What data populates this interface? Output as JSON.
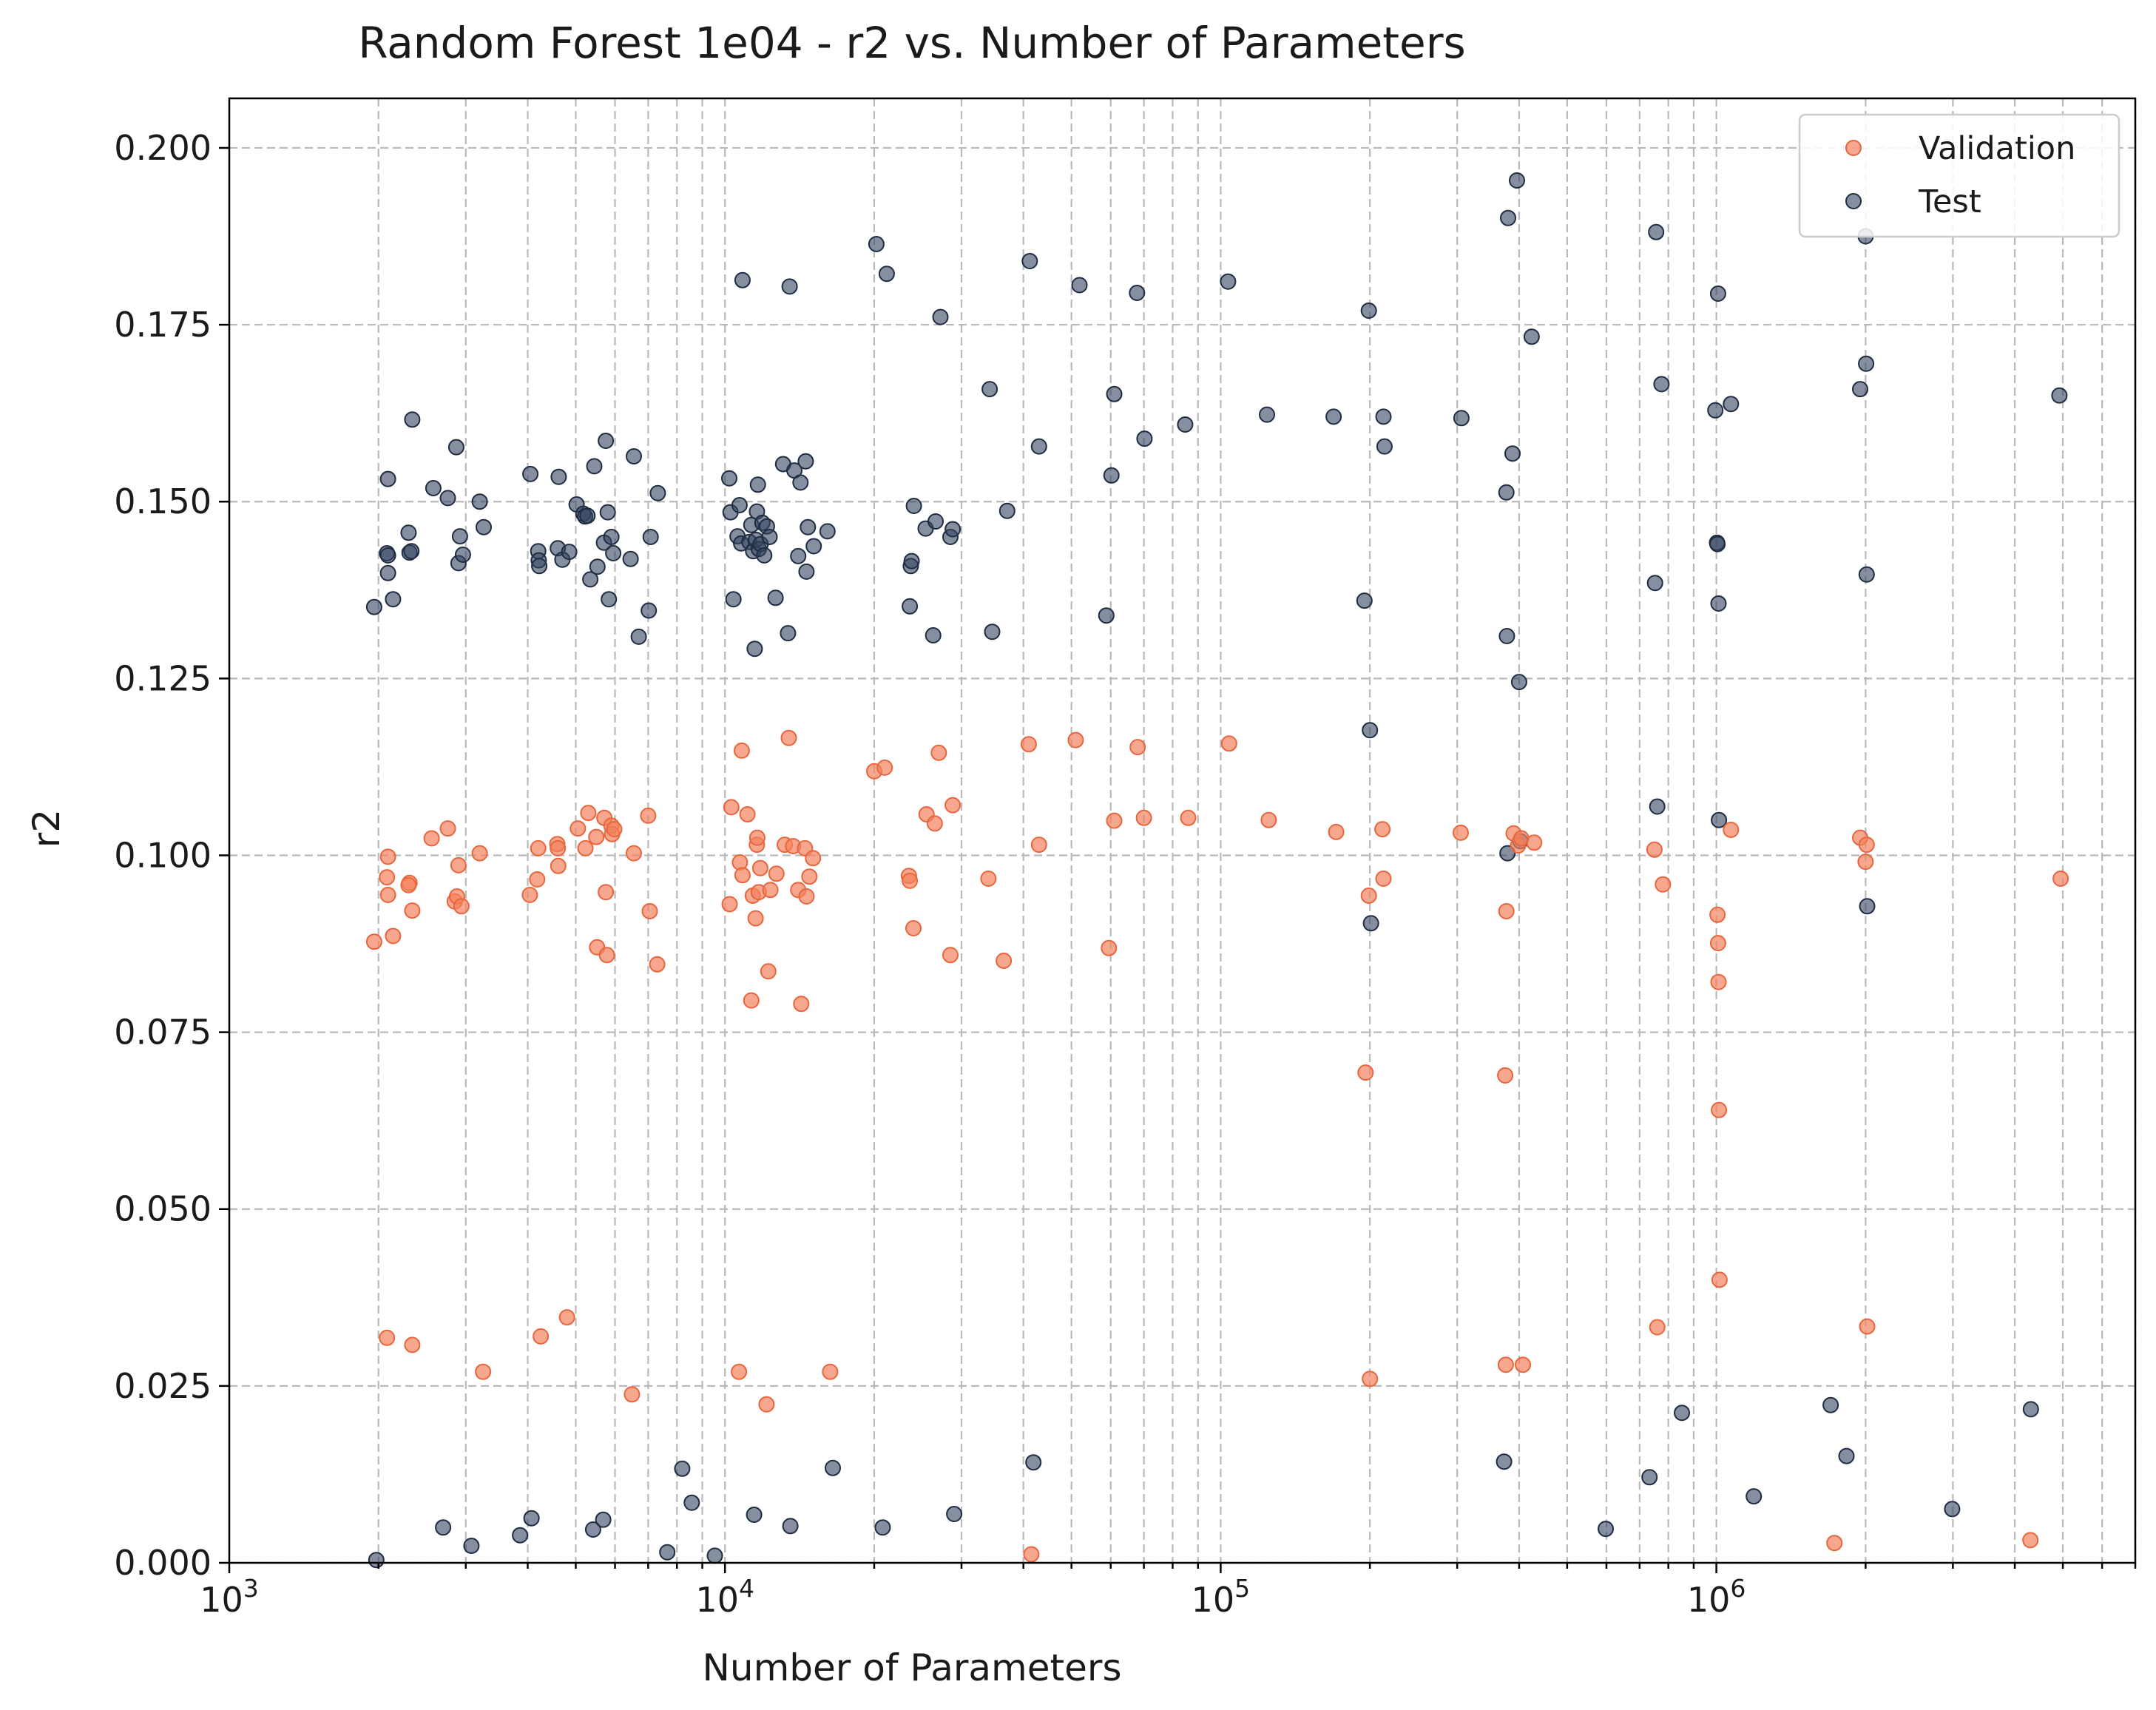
{
  "chart_data": {
    "type": "scatter",
    "title": "Random Forest 1e04 - r2 vs. Number of Parameters",
    "xlabel": "Number of Parameters",
    "ylabel": "r2",
    "xscale": "log",
    "xlim": [
      1000,
      7000000
    ],
    "ylim": [
      0.0,
      0.207
    ],
    "grid": "on (major and minor, dashed)",
    "legend_position": "top-right",
    "x_ticks": [
      {
        "base": "10",
        "exp": "3",
        "value": 1000
      },
      {
        "base": "10",
        "exp": "4",
        "value": 10000
      },
      {
        "base": "10",
        "exp": "5",
        "value": 100000
      },
      {
        "base": "10",
        "exp": "6",
        "value": 1000000
      }
    ],
    "y_ticks": [
      "0.000",
      "0.025",
      "0.050",
      "0.075",
      "0.100",
      "0.125",
      "0.150",
      "0.175",
      "0.200"
    ],
    "series": [
      {
        "name": "Validation",
        "color": "#f4815c",
        "points": [
          [
            1960,
            0.0878
          ],
          [
            2090,
            0.0998
          ],
          [
            2080,
            0.0969
          ],
          [
            2090,
            0.0944
          ],
          [
            2140,
            0.0886
          ],
          [
            2080,
            0.0318
          ],
          [
            2310,
            0.0961
          ],
          [
            2300,
            0.0958
          ],
          [
            2340,
            0.0922
          ],
          [
            2340,
            0.0308
          ],
          [
            2560,
            0.1024
          ],
          [
            2760,
            0.1038
          ],
          [
            2850,
            0.0935
          ],
          [
            2880,
            0.0942
          ],
          [
            2900,
            0.0986
          ],
          [
            2940,
            0.0928
          ],
          [
            3200,
            0.1003
          ],
          [
            3250,
            0.027
          ],
          [
            4040,
            0.0944
          ],
          [
            4180,
            0.0966
          ],
          [
            4200,
            0.101
          ],
          [
            4250,
            0.032
          ],
          [
            4590,
            0.1016
          ],
          [
            4600,
            0.101
          ],
          [
            4610,
            0.0985
          ],
          [
            4800,
            0.0347
          ],
          [
            5050,
            0.1038
          ],
          [
            5230,
            0.101
          ],
          [
            5300,
            0.106
          ],
          [
            5500,
            0.1026
          ],
          [
            5520,
            0.087
          ],
          [
            5710,
            0.1053
          ],
          [
            5750,
            0.0948
          ],
          [
            5780,
            0.0859
          ],
          [
            5900,
            0.1042
          ],
          [
            5920,
            0.103
          ],
          [
            5980,
            0.1037
          ],
          [
            6550,
            0.1003
          ],
          [
            6490,
            0.0238
          ],
          [
            7000,
            0.1056
          ],
          [
            7050,
            0.0921
          ],
          [
            7300,
            0.0846
          ],
          [
            10220,
            0.0931
          ],
          [
            10300,
            0.1068
          ],
          [
            10670,
            0.027
          ],
          [
            10720,
            0.099
          ],
          [
            10810,
            0.1148
          ],
          [
            10850,
            0.0972
          ],
          [
            11100,
            0.1058
          ],
          [
            11300,
            0.0795
          ],
          [
            11380,
            0.0943
          ],
          [
            11530,
            0.0911
          ],
          [
            11600,
            0.1015
          ],
          [
            11620,
            0.1025
          ],
          [
            11700,
            0.0948
          ],
          [
            11780,
            0.0982
          ],
          [
            12130,
            0.0224
          ],
          [
            12230,
            0.0836
          ],
          [
            12350,
            0.0951
          ],
          [
            12700,
            0.0974
          ],
          [
            13200,
            0.1015
          ],
          [
            13450,
            0.1166
          ],
          [
            13720,
            0.1013
          ],
          [
            14050,
            0.0951
          ],
          [
            14250,
            0.079
          ],
          [
            14500,
            0.101
          ],
          [
            14600,
            0.0942
          ],
          [
            14800,
            0.097
          ],
          [
            15050,
            0.0996
          ],
          [
            16300,
            0.027
          ],
          [
            20000,
            0.1119
          ],
          [
            21000,
            0.1124
          ],
          [
            23500,
            0.0971
          ],
          [
            23600,
            0.0964
          ],
          [
            24000,
            0.0897
          ],
          [
            25500,
            0.1058
          ],
          [
            26500,
            0.1045
          ],
          [
            27000,
            0.1145
          ],
          [
            28500,
            0.0859
          ],
          [
            28800,
            0.1071
          ],
          [
            34000,
            0.0967
          ],
          [
            36500,
            0.0851
          ],
          [
            41000,
            0.1157
          ],
          [
            41500,
            0.0012
          ],
          [
            43000,
            0.1015
          ],
          [
            51000,
            0.1163
          ],
          [
            59500,
            0.0869
          ],
          [
            61000,
            0.1049
          ],
          [
            68000,
            0.1153
          ],
          [
            70000,
            0.1053
          ],
          [
            86000,
            0.1053
          ],
          [
            104000,
            0.1158
          ],
          [
            125000,
            0.105
          ],
          [
            171000,
            0.1033
          ],
          [
            196000,
            0.0693
          ],
          [
            199000,
            0.0943
          ],
          [
            200000,
            0.026
          ],
          [
            212000,
            0.1037
          ],
          [
            213000,
            0.0967
          ],
          [
            305000,
            0.1032
          ],
          [
            375000,
            0.0689
          ],
          [
            376000,
            0.028
          ],
          [
            377000,
            0.0921
          ],
          [
            390000,
            0.1031
          ],
          [
            398000,
            0.1014
          ],
          [
            404000,
            0.1024
          ],
          [
            407000,
            0.028
          ],
          [
            429000,
            0.1018
          ],
          [
            750000,
            0.1008
          ],
          [
            760000,
            0.0333
          ],
          [
            780000,
            0.0959
          ],
          [
            1005000,
            0.0916
          ],
          [
            1008000,
            0.0876
          ],
          [
            1010000,
            0.0821
          ],
          [
            1012000,
            0.064
          ],
          [
            1015000,
            0.04
          ],
          [
            1070000,
            0.1036
          ],
          [
            1730000,
            0.0028
          ],
          [
            1950000,
            0.1025
          ],
          [
            2000000,
            0.0991
          ],
          [
            2010000,
            0.1015
          ],
          [
            2015000,
            0.0334
          ],
          [
            4300000,
            0.0032
          ],
          [
            4950000,
            0.0967
          ]
        ]
      },
      {
        "name": "Test",
        "color": "#334560",
        "points": [
          [
            1960,
            0.1351
          ],
          [
            1980,
            0.0004
          ],
          [
            2090,
            0.1532
          ],
          [
            2080,
            0.1427
          ],
          [
            2090,
            0.1424
          ],
          [
            2090,
            0.1399
          ],
          [
            2140,
            0.1362
          ],
          [
            2300,
            0.1456
          ],
          [
            2310,
            0.1428
          ],
          [
            2330,
            0.143
          ],
          [
            2340,
            0.1616
          ],
          [
            2580,
            0.1519
          ],
          [
            2700,
            0.005
          ],
          [
            2760,
            0.1505
          ],
          [
            2870,
            0.1577
          ],
          [
            2900,
            0.1413
          ],
          [
            2920,
            0.1451
          ],
          [
            2960,
            0.1425
          ],
          [
            3080,
            0.0024
          ],
          [
            3200,
            0.15
          ],
          [
            3260,
            0.1464
          ],
          [
            3860,
            0.0039
          ],
          [
            4050,
            0.1539
          ],
          [
            4070,
            0.0063
          ],
          [
            4200,
            0.143
          ],
          [
            4210,
            0.1417
          ],
          [
            4220,
            0.1409
          ],
          [
            4600,
            0.1434
          ],
          [
            4620,
            0.1535
          ],
          [
            4700,
            0.1418
          ],
          [
            4850,
            0.1429
          ],
          [
            5020,
            0.1496
          ],
          [
            5180,
            0.1483
          ],
          [
            5220,
            0.1479
          ],
          [
            5280,
            0.148
          ],
          [
            5350,
            0.139
          ],
          [
            5420,
            0.0047
          ],
          [
            5450,
            0.155
          ],
          [
            5530,
            0.1408
          ],
          [
            5680,
            0.0061
          ],
          [
            5700,
            0.1442
          ],
          [
            5750,
            0.1586
          ],
          [
            5800,
            0.1485
          ],
          [
            5830,
            0.1362
          ],
          [
            5900,
            0.145
          ],
          [
            5950,
            0.1427
          ],
          [
            6450,
            0.1419
          ],
          [
            6550,
            0.1564
          ],
          [
            6700,
            0.1309
          ],
          [
            7020,
            0.1346
          ],
          [
            7080,
            0.145
          ],
          [
            7320,
            0.1512
          ],
          [
            7650,
            0.0015
          ],
          [
            8200,
            0.0133
          ],
          [
            8570,
            0.0085
          ],
          [
            9540,
            0.001
          ],
          [
            10200,
            0.1533
          ],
          [
            10260,
            0.1485
          ],
          [
            10400,
            0.1362
          ],
          [
            10600,
            0.1451
          ],
          [
            10700,
            0.1495
          ],
          [
            10780,
            0.1441
          ],
          [
            10850,
            0.1813
          ],
          [
            11200,
            0.1443
          ],
          [
            11300,
            0.1467
          ],
          [
            11400,
            0.143
          ],
          [
            11450,
            0.0068
          ],
          [
            11480,
            0.1292
          ],
          [
            11550,
            0.1446
          ],
          [
            11600,
            0.1486
          ],
          [
            11650,
            0.1524
          ],
          [
            11700,
            0.1433
          ],
          [
            11800,
            0.144
          ],
          [
            11900,
            0.147
          ],
          [
            12000,
            0.1424
          ],
          [
            12150,
            0.1465
          ],
          [
            12300,
            0.145
          ],
          [
            12650,
            0.1364
          ],
          [
            13100,
            0.1553
          ],
          [
            13400,
            0.1314
          ],
          [
            13500,
            0.1804
          ],
          [
            13550,
            0.0052
          ],
          [
            13800,
            0.1544
          ],
          [
            14050,
            0.1423
          ],
          [
            14200,
            0.1527
          ],
          [
            14550,
            0.1557
          ],
          [
            14600,
            0.1401
          ],
          [
            14700,
            0.1464
          ],
          [
            15100,
            0.1437
          ],
          [
            16100,
            0.1458
          ],
          [
            16500,
            0.0134
          ],
          [
            20200,
            0.1864
          ],
          [
            20800,
            0.005
          ],
          [
            21200,
            0.1822
          ],
          [
            23600,
            0.1352
          ],
          [
            23700,
            0.1409
          ],
          [
            23800,
            0.1416
          ],
          [
            24050,
            0.1494
          ],
          [
            25400,
            0.1462
          ],
          [
            26300,
            0.1311
          ],
          [
            26600,
            0.1472
          ],
          [
            27200,
            0.1761
          ],
          [
            28500,
            0.145
          ],
          [
            28800,
            0.1461
          ],
          [
            29000,
            0.0069
          ],
          [
            34200,
            0.1659
          ],
          [
            34600,
            0.1316
          ],
          [
            37100,
            0.1487
          ],
          [
            41200,
            0.184
          ],
          [
            41900,
            0.0142
          ],
          [
            43000,
            0.1578
          ],
          [
            51900,
            0.1806
          ],
          [
            58800,
            0.1339
          ],
          [
            60200,
            0.1537
          ],
          [
            61000,
            0.1652
          ],
          [
            67800,
            0.1795
          ],
          [
            70200,
            0.1589
          ],
          [
            84800,
            0.1609
          ],
          [
            103500,
            0.1811
          ],
          [
            124000,
            0.1623
          ],
          [
            169000,
            0.162
          ],
          [
            195000,
            0.136
          ],
          [
            199000,
            0.177
          ],
          [
            200000,
            0.1177
          ],
          [
            201000,
            0.0904
          ],
          [
            213000,
            0.162
          ],
          [
            214000,
            0.1578
          ],
          [
            306000,
            0.1618
          ],
          [
            373000,
            0.0143
          ],
          [
            377000,
            0.1513
          ],
          [
            378000,
            0.131
          ],
          [
            379000,
            0.1003
          ],
          [
            380000,
            0.1901
          ],
          [
            388000,
            0.1568
          ],
          [
            396000,
            0.1954
          ],
          [
            400000,
            0.1245
          ],
          [
            402000,
            0.102
          ],
          [
            424000,
            0.1733
          ],
          [
            598000,
            0.0048
          ],
          [
            733000,
            0.0121
          ],
          [
            752000,
            0.1385
          ],
          [
            756000,
            0.1881
          ],
          [
            760000,
            0.1069
          ],
          [
            775000,
            0.1666
          ],
          [
            852000,
            0.0212
          ],
          [
            995000,
            0.1629
          ],
          [
            1003000,
            0.1442
          ],
          [
            1005000,
            0.144
          ],
          [
            1008000,
            0.1794
          ],
          [
            1010000,
            0.1356
          ],
          [
            1012000,
            0.105
          ],
          [
            1070000,
            0.1638
          ],
          [
            1190000,
            0.0094
          ],
          [
            1700000,
            0.0223
          ],
          [
            1830000,
            0.0151
          ],
          [
            1950000,
            0.1659
          ],
          [
            2000000,
            0.1875
          ],
          [
            2005000,
            0.1695
          ],
          [
            2010000,
            0.1397
          ],
          [
            2015000,
            0.0928
          ],
          [
            2990000,
            0.0076
          ],
          [
            4310000,
            0.0217
          ],
          [
            4920000,
            0.165
          ]
        ]
      }
    ]
  }
}
